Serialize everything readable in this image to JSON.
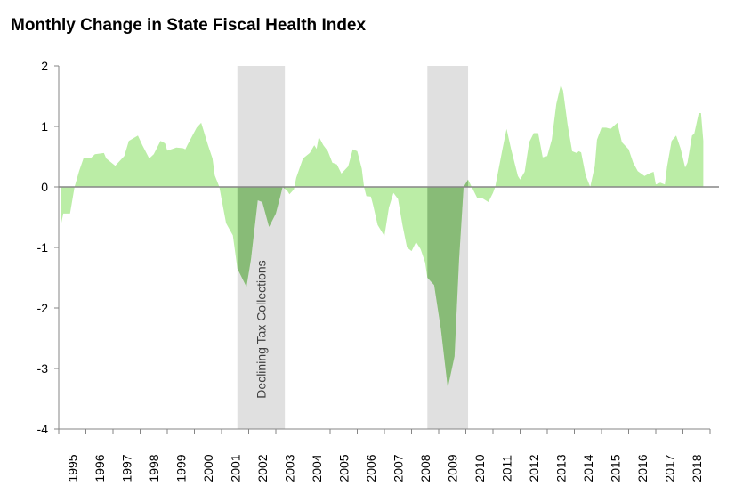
{
  "chart_data": {
    "type": "area",
    "title": "Monthly Change in State Fiscal Health Index",
    "xlabel": "",
    "ylabel": "",
    "ylim": [
      -4,
      2
    ],
    "yticks": [
      "2",
      "1",
      "0",
      "-1",
      "-2",
      "-3",
      "-4"
    ],
    "xticks": [
      "1995",
      "1996",
      "1997",
      "1998",
      "1999",
      "2000",
      "2001",
      "2002",
      "2003",
      "2004",
      "2005",
      "2006",
      "2007",
      "2008",
      "2009",
      "2010",
      "2011",
      "2012",
      "2013",
      "2014",
      "2015",
      "2016",
      "2017",
      "2018"
    ],
    "grid": false,
    "legend": "none",
    "colors": {
      "area": "#bbeda6",
      "area_in_band": "#88bb77",
      "band": "#e0e0e0",
      "axis": "#868686"
    },
    "shaded_periods": [
      {
        "start": "2001-08",
        "end": "2003-05",
        "label": "Declining Tax Collections"
      },
      {
        "start": "2008-08",
        "end": "2010-02",
        "label": ""
      }
    ],
    "points": [
      [
        "1995-02",
        -0.63
      ],
      [
        "1995-03",
        -0.44
      ],
      [
        "1995-06",
        -0.44
      ],
      [
        "1995-08",
        0
      ],
      [
        "1995-10",
        0.26
      ],
      [
        "1995-12",
        0.48
      ],
      [
        "1996-03",
        0.47
      ],
      [
        "1996-05",
        0.54
      ],
      [
        "1996-09",
        0.56
      ],
      [
        "1996-10",
        0.47
      ],
      [
        "1997-02",
        0.35
      ],
      [
        "1997-06",
        0.51
      ],
      [
        "1997-08",
        0.76
      ],
      [
        "1997-12",
        0.85
      ],
      [
        "1998-02",
        0.69
      ],
      [
        "1998-05",
        0.47
      ],
      [
        "1998-07",
        0.54
      ],
      [
        "1998-10",
        0.76
      ],
      [
        "1998-12",
        0.72
      ],
      [
        "1999-01",
        0.6
      ],
      [
        "1999-05",
        0.65
      ],
      [
        "1999-08",
        0.64
      ],
      [
        "1999-09",
        0.62
      ],
      [
        "1999-10",
        0.7
      ],
      [
        "2000-02",
        0.98
      ],
      [
        "2000-04",
        1.06
      ],
      [
        "2000-07",
        0.69
      ],
      [
        "2000-09",
        0.47
      ],
      [
        "2000-10",
        0.19
      ],
      [
        "2000-12",
        0
      ],
      [
        "2001-01",
        -0.2
      ],
      [
        "2001-03",
        -0.6
      ],
      [
        "2001-06",
        -0.8
      ],
      [
        "2001-08",
        -1.35
      ],
      [
        "2001-12",
        -1.65
      ],
      [
        "2002-02",
        -1.2
      ],
      [
        "2002-05",
        -0.22
      ],
      [
        "2002-07",
        -0.25
      ],
      [
        "2002-10",
        -0.66
      ],
      [
        "2003-01",
        -0.44
      ],
      [
        "2003-03",
        -0.15
      ],
      [
        "2003-04",
        0
      ],
      [
        "2003-06",
        -0.06
      ],
      [
        "2003-07",
        -0.12
      ],
      [
        "2003-09",
        -0.04
      ],
      [
        "2003-10",
        0.15
      ],
      [
        "2004-01",
        0.47
      ],
      [
        "2004-04",
        0.56
      ],
      [
        "2004-06",
        0.69
      ],
      [
        "2004-07",
        0.63
      ],
      [
        "2004-08",
        0.83
      ],
      [
        "2004-10",
        0.69
      ],
      [
        "2004-12",
        0.59
      ],
      [
        "2005-02",
        0.4
      ],
      [
        "2005-04",
        0.37
      ],
      [
        "2005-06",
        0.22
      ],
      [
        "2005-09",
        0.34
      ],
      [
        "2005-11",
        0.62
      ],
      [
        "2006-01",
        0.59
      ],
      [
        "2006-03",
        0.3
      ],
      [
        "2006-04",
        0
      ],
      [
        "2006-05",
        -0.15
      ],
      [
        "2006-07",
        -0.16
      ],
      [
        "2006-08",
        -0.3
      ],
      [
        "2006-10",
        -0.63
      ],
      [
        "2007-01",
        -0.81
      ],
      [
        "2007-03",
        -0.34
      ],
      [
        "2007-05",
        -0.1
      ],
      [
        "2007-07",
        -0.2
      ],
      [
        "2007-09",
        -0.63
      ],
      [
        "2007-11",
        -1.0
      ],
      [
        "2008-01",
        -1.06
      ],
      [
        "2008-03",
        -0.91
      ],
      [
        "2008-05",
        -1.03
      ],
      [
        "2008-07",
        -1.25
      ],
      [
        "2008-08",
        -1.5
      ],
      [
        "2008-11",
        -1.62
      ],
      [
        "2009-02",
        -2.35
      ],
      [
        "2009-05",
        -3.32
      ],
      [
        "2009-08",
        -2.8
      ],
      [
        "2009-10",
        -1.2
      ],
      [
        "2009-12",
        0
      ],
      [
        "2010-02",
        0.12
      ],
      [
        "2010-04",
        -0.03
      ],
      [
        "2010-06",
        -0.18
      ],
      [
        "2010-08",
        -0.18
      ],
      [
        "2010-11",
        -0.25
      ],
      [
        "2011-01",
        -0.1
      ],
      [
        "2011-02",
        0
      ],
      [
        "2011-05",
        0.59
      ],
      [
        "2011-07",
        0.96
      ],
      [
        "2011-09",
        0.63
      ],
      [
        "2011-12",
        0.18
      ],
      [
        "2012-01",
        0.12
      ],
      [
        "2012-03",
        0.25
      ],
      [
        "2012-05",
        0.74
      ],
      [
        "2012-07",
        0.89
      ],
      [
        "2012-09",
        0.89
      ],
      [
        "2012-11",
        0.49
      ],
      [
        "2013-01",
        0.51
      ],
      [
        "2013-03",
        0.78
      ],
      [
        "2013-05",
        1.37
      ],
      [
        "2013-07",
        1.69
      ],
      [
        "2013-08",
        1.59
      ],
      [
        "2013-10",
        1.03
      ],
      [
        "2013-12",
        0.59
      ],
      [
        "2014-02",
        0.56
      ],
      [
        "2014-03",
        0.59
      ],
      [
        "2014-04",
        0.57
      ],
      [
        "2014-06",
        0.19
      ],
      [
        "2014-08",
        0
      ],
      [
        "2014-10",
        0.34
      ],
      [
        "2014-11",
        0.78
      ],
      [
        "2015-01",
        0.98
      ],
      [
        "2015-03",
        0.98
      ],
      [
        "2015-05",
        0.96
      ],
      [
        "2015-08",
        1.06
      ],
      [
        "2015-10",
        0.74
      ],
      [
        "2016-01",
        0.62
      ],
      [
        "2016-03",
        0.4
      ],
      [
        "2016-05",
        0.26
      ],
      [
        "2016-08",
        0.18
      ],
      [
        "2016-10",
        0.22
      ],
      [
        "2016-12",
        0.25
      ],
      [
        "2017-01",
        0.04
      ],
      [
        "2017-03",
        0.07
      ],
      [
        "2017-05",
        0.04
      ],
      [
        "2017-06",
        0.34
      ],
      [
        "2017-08",
        0.76
      ],
      [
        "2017-10",
        0.85
      ],
      [
        "2017-12",
        0.63
      ],
      [
        "2018-02",
        0.32
      ],
      [
        "2018-03",
        0.4
      ],
      [
        "2018-05",
        0.85
      ],
      [
        "2018-06",
        0.88
      ],
      [
        "2018-08",
        1.22
      ],
      [
        "2018-09",
        1.22
      ],
      [
        "2018-10",
        0.76
      ]
    ]
  }
}
